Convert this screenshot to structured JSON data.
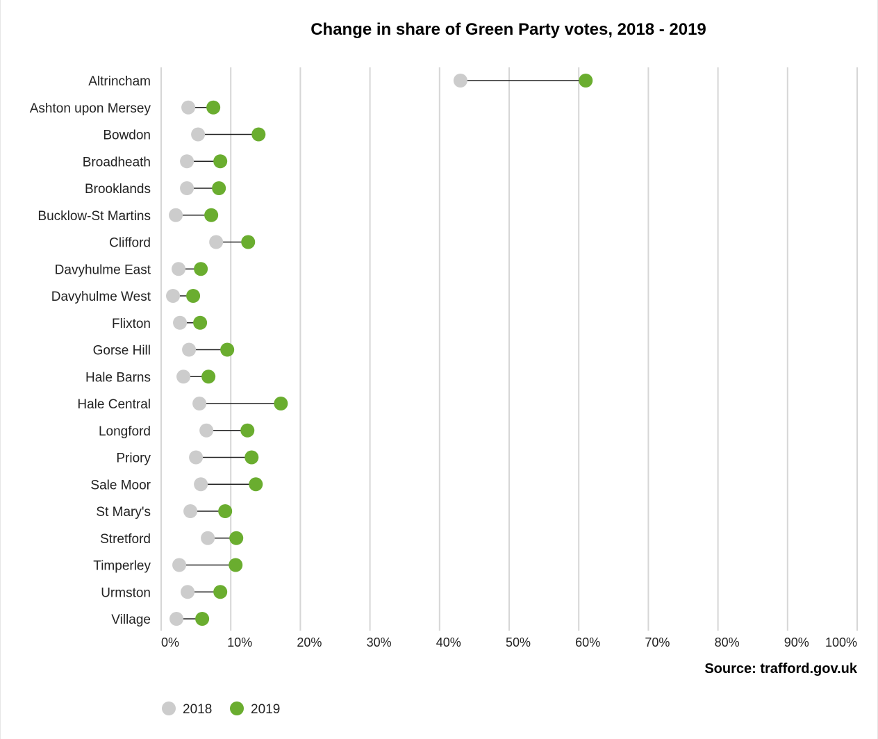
{
  "chart_data": {
    "type": "dumbbell",
    "title": "Change in share of Green Party votes, 2018 - 2019",
    "source": "Source: trafford.gov.uk",
    "xlabel": "",
    "ylabel": "",
    "xlim": [
      0,
      100
    ],
    "x_ticks": [
      0,
      10,
      20,
      30,
      40,
      50,
      60,
      70,
      80,
      90,
      100
    ],
    "x_tick_labels": [
      "0%",
      "10%",
      "20%",
      "30%",
      "40%",
      "50%",
      "60%",
      "70%",
      "80%",
      "90%",
      "100%"
    ],
    "grid": true,
    "legend_position": "bottom-left",
    "categories": [
      "Altrincham",
      "Ashton upon Mersey",
      "Bowdon",
      "Broadheath",
      "Brooklands",
      "Bucklow-St Martins",
      "Clifford",
      "Davyhulme East",
      "Davyhulme West",
      "Flixton",
      "Gorse Hill",
      "Hale Barns",
      "Hale Central",
      "Longford",
      "Priory",
      "Sale Moor",
      "St Mary's",
      "Stretford",
      "Timperley",
      "Urmston",
      "Village"
    ],
    "series": [
      {
        "name": "2018",
        "color": "#cccccc",
        "values": [
          43,
          3.9,
          5.3,
          3.7,
          3.7,
          2.1,
          7.9,
          2.5,
          1.7,
          2.7,
          4,
          3.2,
          5.5,
          6.5,
          5,
          5.7,
          4.2,
          6.7,
          2.6,
          3.8,
          2.2
        ]
      },
      {
        "name": "2019",
        "color": "#6aad2f",
        "values": [
          61,
          7.5,
          14,
          8.5,
          8.3,
          7.2,
          12.5,
          5.7,
          4.6,
          5.6,
          9.5,
          6.8,
          17.2,
          12.4,
          13,
          13.6,
          9.2,
          10.8,
          10.7,
          8.5,
          5.9
        ]
      }
    ]
  }
}
